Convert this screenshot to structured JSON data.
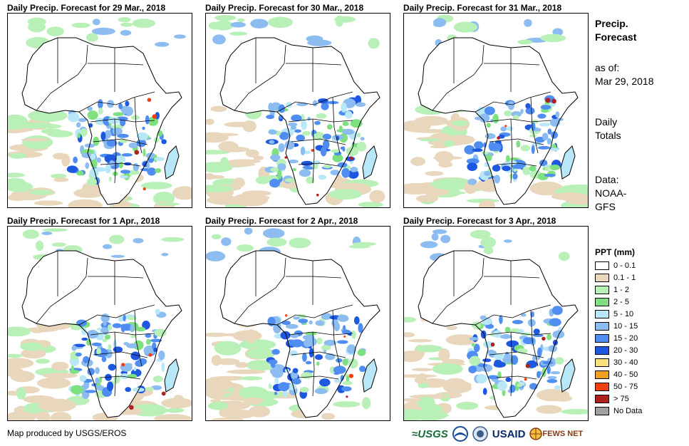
{
  "colors": {
    "land_stroke": "#000000",
    "scale": [
      "#ffffff",
      "#e8d7bc",
      "#b8f0b8",
      "#7ee07e",
      "#b8e8f8",
      "#8cbcf0",
      "#4f8ef0",
      "#1f58e0",
      "#f8e07c",
      "#f0a020",
      "#f04010",
      "#b02020",
      "#a0a0a0"
    ]
  },
  "panels": [
    {
      "title": "Daily Precip. Forecast for 29 Mar., 2018"
    },
    {
      "title": "Daily Precip. Forecast for 30 Mar., 2018"
    },
    {
      "title": "Daily Precip. Forecast for 31 Mar., 2018"
    },
    {
      "title": "Daily Precip. Forecast for 1 Apr., 2018"
    },
    {
      "title": "Daily Precip. Forecast for 2 Apr., 2018"
    },
    {
      "title": "Daily Precip. Forecast for 3 Apr., 2018"
    }
  ],
  "sidebar": {
    "heading_line1": "Precip.",
    "heading_line2": "Forecast",
    "asof_label": "as of:",
    "asof_date": "Mar 29, 2018",
    "totals_line1": "Daily",
    "totals_line2": "Totals",
    "source_line1": "Data:",
    "source_line2": "NOAA-",
    "source_line3": "GFS"
  },
  "legend": {
    "title": "PPT (mm)",
    "items": [
      {
        "label": "0 - 0.1",
        "color": "#ffffff"
      },
      {
        "label": "0.1 - 1",
        "color": "#e8d7bc"
      },
      {
        "label": "1 - 2",
        "color": "#b8f0b8"
      },
      {
        "label": "2 - 5",
        "color": "#7ee07e"
      },
      {
        "label": "5 - 10",
        "color": "#b8e8f8"
      },
      {
        "label": "10 - 15",
        "color": "#8cbcf0"
      },
      {
        "label": "15 - 20",
        "color": "#4f8ef0"
      },
      {
        "label": "20 - 30",
        "color": "#1f58e0"
      },
      {
        "label": "30 - 40",
        "color": "#f8e07c"
      },
      {
        "label": "40 - 50",
        "color": "#f0a020"
      },
      {
        "label": "50 - 75",
        "color": "#f04010"
      },
      {
        "label": "> 75",
        "color": "#b02020"
      },
      {
        "label": "No Data",
        "color": "#a0a0a0"
      }
    ]
  },
  "footer": {
    "credit": "Map produced by USGS/EROS",
    "logo_usgs": "≈USGS",
    "logo_usaid": "USAID",
    "logo_fews": "FEWS NET"
  }
}
